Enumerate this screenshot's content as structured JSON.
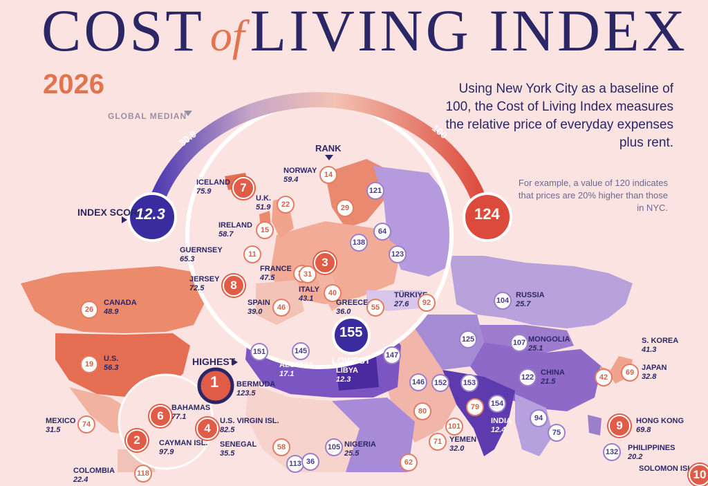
{
  "header": {
    "title_main_1": "COST",
    "title_of": "of",
    "title_main_2": "LIVING INDEX",
    "year": "2026",
    "description": "Using New York City as a baseline of 100, the Cost of Living Index measures the relative price of everyday expenses plus rent.",
    "example": "For example, a value of 120 indicates that prices are 20% higher than those in NYC."
  },
  "legend": {
    "global_median_label": "GLOBAL MEDIAN",
    "median_value": "30.9",
    "baseline_value": "100",
    "index_scores_label": "INDEX SCORES",
    "min_score": "12.3",
    "max_score": "124",
    "rank_label": "RANK",
    "highest_label": "HIGHEST",
    "lowest_label": "LOWEST"
  },
  "colors": {
    "background": "#fbe3e1",
    "high": "#e05c46",
    "mid_high": "#ec9478",
    "low": "#6b45b8",
    "lowest": "#4a2a9e",
    "navy": "#2b2766"
  },
  "countries": [
    {
      "name": "ICELAND",
      "value": "75.9",
      "rank": "7"
    },
    {
      "name": "NORWAY",
      "value": "59.4",
      "rank": "14"
    },
    {
      "name": "U.K.",
      "value": "51.9",
      "rank": "22"
    },
    {
      "name": "IRELAND",
      "value": "58.7",
      "rank": "15"
    },
    {
      "name": "GUERNSEY",
      "value": "65.3",
      "rank": "11"
    },
    {
      "name": "JERSEY",
      "value": "72.5",
      "rank": "8"
    },
    {
      "name": "FRANCE",
      "value": "47.5",
      "rank": "32"
    },
    {
      "name": "SPAIN",
      "value": "39.0",
      "rank": "46"
    },
    {
      "name": "ITALY",
      "value": "43.1",
      "rank": "40"
    },
    {
      "name": "GREECE",
      "value": "36.0",
      "rank": "55"
    },
    {
      "name": "TÜRKIYE",
      "value": "27.6",
      "rank": "92"
    },
    {
      "name": "RUSSIA",
      "value": "25.7",
      "rank": "104"
    },
    {
      "name": "MONGOLIA",
      "value": "25.1",
      "rank": "107"
    },
    {
      "name": "CHINA",
      "value": "21.5",
      "rank": "122"
    },
    {
      "name": "S. KOREA",
      "value": "41.3",
      "rank": "42"
    },
    {
      "name": "JAPAN",
      "value": "32.8",
      "rank": "69"
    },
    {
      "name": "CANADA",
      "value": "48.9",
      "rank": "26"
    },
    {
      "name": "U.S.",
      "value": "56.3",
      "rank": "19"
    },
    {
      "name": "ALGERIA",
      "value": "17.1",
      "rank": "145"
    },
    {
      "name": "LIBYA",
      "value": "12.3",
      "rank": "155"
    },
    {
      "name": "BERMUDA",
      "value": "123.5",
      "rank": "1"
    },
    {
      "name": "BAHAMAS",
      "value": "77.1",
      "rank": "6"
    },
    {
      "name": "U.S. VIRGIN ISL.",
      "value": "82.5",
      "rank": "4"
    },
    {
      "name": "CAYMAN ISL.",
      "value": "97.9",
      "rank": "2"
    },
    {
      "name": "MEXICO",
      "value": "31.5",
      "rank": "74"
    },
    {
      "name": "SENEGAL",
      "value": "35.5",
      "rank": "58"
    },
    {
      "name": "NIGERIA",
      "value": "25.5",
      "rank": "105"
    },
    {
      "name": "YEMEN",
      "value": "32.0",
      "rank": "71"
    },
    {
      "name": "INDIA",
      "value": "12.4",
      "rank": "154"
    },
    {
      "name": "HONG KONG",
      "value": "69.8",
      "rank": "9"
    },
    {
      "name": "PHILIPPINES",
      "value": "20.2",
      "rank": "132"
    },
    {
      "name": "COLOMBIA",
      "value": "22.4",
      "rank": "118"
    },
    {
      "name": "SOLOMON ISL.",
      "value": "",
      "rank": "10"
    }
  ],
  "other_ranks": [
    "3",
    "31",
    "29",
    "121",
    "64",
    "138",
    "123",
    "125",
    "151",
    "147",
    "146",
    "152",
    "153",
    "79",
    "80",
    "101",
    "94",
    "75",
    "62",
    "113",
    "36"
  ]
}
